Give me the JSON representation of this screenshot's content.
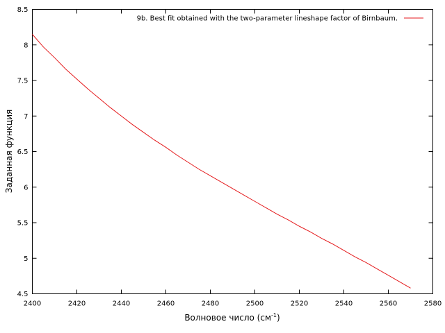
{
  "chart_data": {
    "type": "line",
    "title": "",
    "xlabel": "Волновое число (см",
    "xlabel_sup": "-1",
    "xlabel_close": ")",
    "ylabel": "Заданная функция",
    "xlim": [
      2400,
      2580
    ],
    "ylim": [
      4.5,
      8.5
    ],
    "x_ticks": [
      2400,
      2420,
      2440,
      2460,
      2480,
      2500,
      2520,
      2540,
      2560,
      2580
    ],
    "y_ticks": [
      4.5,
      5,
      5.5,
      6,
      6.5,
      7,
      7.5,
      8,
      8.5
    ],
    "x_tick_labels": [
      "2400",
      "2420",
      "2440",
      "2460",
      "2480",
      "2500",
      "2520",
      "2540",
      "2560",
      "2580"
    ],
    "y_tick_labels": [
      "4.5",
      "5",
      "5.5",
      "6",
      "6.5",
      "7",
      "7.5",
      "8",
      "8.5"
    ],
    "grid": false,
    "legend_position": "top-right",
    "series": [
      {
        "name": "9b. Best fit obtained with the two-parameter lineshape factor of Birnbaum.",
        "color": "#e41a1c",
        "x": [
          2400,
          2405,
          2410,
          2415,
          2420,
          2425,
          2430,
          2435,
          2440,
          2445,
          2450,
          2455,
          2460,
          2465,
          2470,
          2475,
          2480,
          2485,
          2490,
          2495,
          2500,
          2505,
          2510,
          2515,
          2520,
          2525,
          2530,
          2535,
          2540,
          2545,
          2550,
          2555,
          2560,
          2565,
          2570
        ],
        "y": [
          8.15,
          7.97,
          7.82,
          7.66,
          7.52,
          7.38,
          7.25,
          7.12,
          7.0,
          6.88,
          6.77,
          6.66,
          6.56,
          6.45,
          6.35,
          6.25,
          6.16,
          6.07,
          5.98,
          5.89,
          5.8,
          5.71,
          5.62,
          5.54,
          5.45,
          5.37,
          5.28,
          5.2,
          5.11,
          5.02,
          4.94,
          4.85,
          4.76,
          4.67,
          4.58
        ]
      }
    ]
  }
}
